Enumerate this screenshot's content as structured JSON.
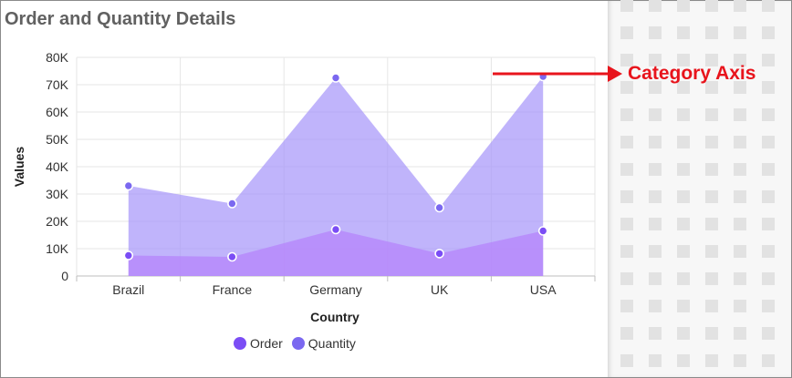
{
  "chart_data": {
    "type": "area",
    "title": "Order and Quantity Details",
    "xlabel": "Country",
    "ylabel": "Values",
    "categories": [
      "Brazil",
      "France",
      "Germany",
      "UK",
      "USA"
    ],
    "ylim": [
      0,
      80000
    ],
    "yticks": [
      0,
      10000,
      20000,
      30000,
      40000,
      50000,
      60000,
      70000,
      80000
    ],
    "ytick_labels": [
      "0",
      "10K",
      "20K",
      "30K",
      "40K",
      "50K",
      "60K",
      "70K",
      "80K"
    ],
    "grid": true,
    "legend_position": "bottom",
    "series": [
      {
        "name": "Order",
        "values": [
          7500,
          7000,
          17000,
          8200,
          16500
        ],
        "color": "#b685fb",
        "marker_color": "#7b4df5"
      },
      {
        "name": "Quantity",
        "values": [
          33000,
          26500,
          72500,
          25000,
          73000
        ],
        "color": "#a897f9",
        "marker_color": "#7b68f0"
      }
    ]
  },
  "annotation": {
    "text": "Category Axis",
    "color": "#e8141c"
  }
}
